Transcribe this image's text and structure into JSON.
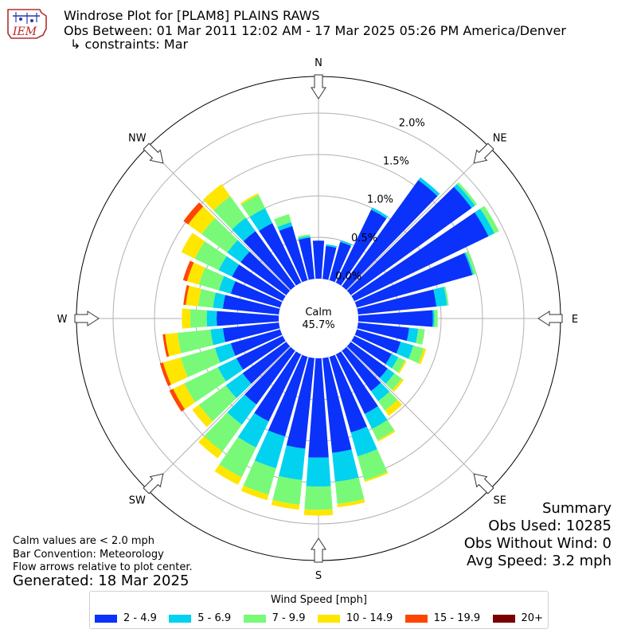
{
  "header": {
    "title": "Windrose Plot for [PLAM8] PLAINS RAWS",
    "subtitle": "Obs Between: 01 Mar 2011 12:02 AM - 17 Mar 2025 05:26 PM America/Denver",
    "constraint": "↳ constraints: Mar",
    "logo_text": "IEM"
  },
  "notes": {
    "calm": "Calm values are < 2.0 mph",
    "bar_convention": "Bar Convention: Meteorology",
    "flow": "Flow arrows relative to plot center.",
    "generated": "Generated: 18 Mar 2025"
  },
  "summary": {
    "title": "Summary",
    "obs_used": "Obs Used: 10285",
    "obs_without_wind": "Obs Without Wind: 0",
    "avg_speed": "Avg Speed: 3.2 mph"
  },
  "legend": {
    "title": "Wind Speed [mph]",
    "items": [
      {
        "label": "2 - 4.9",
        "color": "#0a32fa"
      },
      {
        "label": "5 - 6.9",
        "color": "#00d2f0"
      },
      {
        "label": "7 - 9.9",
        "color": "#78fa78"
      },
      {
        "label": "10 - 14.9",
        "color": "#ffe600"
      },
      {
        "label": "15 - 19.9",
        "color": "#ff4600"
      },
      {
        "label": "20+",
        "color": "#7a0000"
      }
    ]
  },
  "chart_data": {
    "type": "windrose",
    "title": "Windrose Plot for [PLAM8] PLAINS RAWS",
    "calm_label": "Calm",
    "calm_value": "45.7%",
    "radial_ticks": [
      "0.0%",
      "0.5%",
      "1.0%",
      "1.5%",
      "2.0%"
    ],
    "radial_values": [
      0,
      0.5,
      1.0,
      1.5,
      2.0
    ],
    "compass": [
      {
        "label": "N",
        "deg": 0
      },
      {
        "label": "NE",
        "deg": 45
      },
      {
        "label": "E",
        "deg": 90
      },
      {
        "label": "SE",
        "deg": 135
      },
      {
        "label": "S",
        "deg": 180
      },
      {
        "label": "SW",
        "deg": 225
      },
      {
        "label": "W",
        "deg": 270
      },
      {
        "label": "NW",
        "deg": 315
      }
    ],
    "unit": "%",
    "bins": [
      "2 - 4.9",
      "5 - 6.9",
      "7 - 9.9",
      "10 - 14.9",
      "15 - 19.9",
      "20+"
    ],
    "directions": [
      {
        "deg": 0,
        "values": [
          0.46,
          0,
          0,
          0,
          0,
          0
        ]
      },
      {
        "deg": 10,
        "values": [
          0.4,
          0.02,
          0,
          0,
          0,
          0
        ]
      },
      {
        "deg": 20,
        "values": [
          0.48,
          0.02,
          0,
          0,
          0,
          0
        ]
      },
      {
        "deg": 30,
        "values": [
          0.98,
          0.03,
          0,
          0,
          0,
          0
        ]
      },
      {
        "deg": 40,
        "values": [
          1.58,
          0.04,
          0,
          0,
          0,
          0
        ]
      },
      {
        "deg": 50,
        "values": [
          1.8,
          0.05,
          0.03,
          0,
          0,
          0
        ]
      },
      {
        "deg": 60,
        "values": [
          1.8,
          0.08,
          0.06,
          0,
          0,
          0
        ]
      },
      {
        "deg": 70,
        "values": [
          1.45,
          0.02,
          0.03,
          0,
          0,
          0
        ]
      },
      {
        "deg": 80,
        "values": [
          0.95,
          0.13,
          0.02,
          0,
          0,
          0
        ]
      },
      {
        "deg": 90,
        "values": [
          0.9,
          0.02,
          0.04,
          0,
          0,
          0
        ]
      },
      {
        "deg": 100,
        "values": [
          0.62,
          0.11,
          0.08,
          0,
          0,
          0
        ]
      },
      {
        "deg": 110,
        "values": [
          0.55,
          0.16,
          0.13,
          0.03,
          0,
          0
        ]
      },
      {
        "deg": 120,
        "values": [
          0.5,
          0.09,
          0.09,
          0.02,
          0,
          0
        ]
      },
      {
        "deg": 130,
        "values": [
          0.55,
          0.1,
          0.11,
          0.03,
          0,
          0
        ]
      },
      {
        "deg": 140,
        "values": [
          0.6,
          0.15,
          0.14,
          0.08,
          0,
          0
        ]
      },
      {
        "deg": 150,
        "values": [
          0.8,
          0.2,
          0.15,
          0.02,
          0,
          0
        ]
      },
      {
        "deg": 160,
        "values": [
          0.95,
          0.3,
          0.3,
          0.02,
          0,
          0
        ]
      },
      {
        "deg": 170,
        "values": [
          1.15,
          0.35,
          0.27,
          0.04,
          0,
          0
        ]
      },
      {
        "deg": 180,
        "values": [
          1.2,
          0.35,
          0.28,
          0.07,
          0,
          0
        ]
      },
      {
        "deg": 190,
        "values": [
          1.1,
          0.38,
          0.3,
          0.06,
          0,
          0
        ]
      },
      {
        "deg": 200,
        "values": [
          1.0,
          0.4,
          0.33,
          0.07,
          0,
          0
        ]
      },
      {
        "deg": 210,
        "values": [
          0.9,
          0.35,
          0.4,
          0.1,
          0,
          0
        ]
      },
      {
        "deg": 220,
        "values": [
          0.8,
          0.3,
          0.4,
          0.1,
          0,
          0
        ]
      },
      {
        "deg": 230,
        "values": [
          0.65,
          0.25,
          0.4,
          0.1,
          0,
          0
        ]
      },
      {
        "deg": 240,
        "values": [
          0.62,
          0.25,
          0.45,
          0.15,
          0.05,
          0
        ]
      },
      {
        "deg": 250,
        "values": [
          0.62,
          0.2,
          0.43,
          0.22,
          0.04,
          0
        ]
      },
      {
        "deg": 260,
        "values": [
          0.68,
          0.15,
          0.4,
          0.15,
          0.03,
          0
        ]
      },
      {
        "deg": 270,
        "values": [
          0.75,
          0.12,
          0.2,
          0.1,
          0,
          0
        ]
      },
      {
        "deg": 280,
        "values": [
          0.68,
          0.12,
          0.18,
          0.15,
          0.03,
          0
        ]
      },
      {
        "deg": 290,
        "values": [
          0.62,
          0.15,
          0.25,
          0.15,
          0.05,
          0
        ]
      },
      {
        "deg": 300,
        "values": [
          0.68,
          0.18,
          0.32,
          0.18,
          0,
          0
        ]
      },
      {
        "deg": 310,
        "values": [
          0.68,
          0.2,
          0.38,
          0.2,
          0.07,
          0
        ]
      },
      {
        "deg": 320,
        "values": [
          0.82,
          0.2,
          0.32,
          0.18,
          0,
          0
        ]
      },
      {
        "deg": 330,
        "values": [
          0.8,
          0.2,
          0.18,
          0.02,
          0,
          0
        ]
      },
      {
        "deg": 340,
        "values": [
          0.68,
          0.05,
          0.1,
          0,
          0,
          0
        ]
      },
      {
        "deg": 350,
        "values": [
          0.5,
          0.02,
          0.02,
          0,
          0,
          0
        ]
      }
    ]
  }
}
